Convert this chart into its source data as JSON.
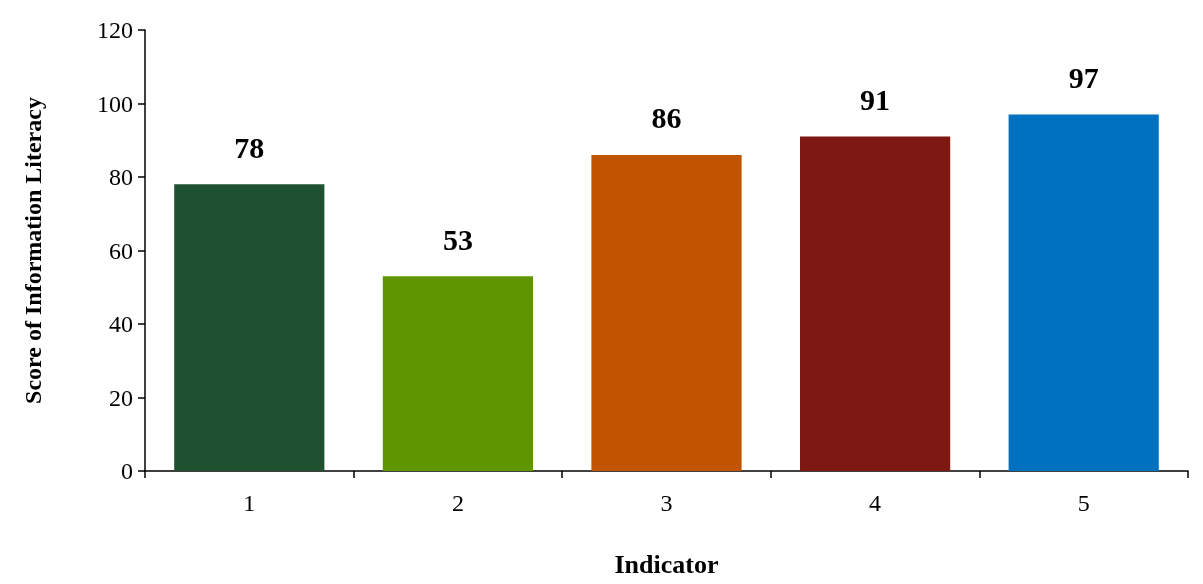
{
  "chart_data": {
    "type": "bar",
    "xlabel": "Indicator",
    "ylabel": "Score of Information Literacy",
    "categories": [
      "1",
      "2",
      "3",
      "4",
      "5"
    ],
    "values": [
      78,
      53,
      86,
      91,
      97
    ],
    "colors": [
      "#1e5130",
      "#5f9600",
      "#c05400",
      "#7e1812",
      "#0070c0"
    ],
    "ylim": [
      0,
      120
    ],
    "yticks": [
      0,
      20,
      40,
      60,
      80,
      100,
      120
    ],
    "grid": false,
    "data_labels": true
  }
}
